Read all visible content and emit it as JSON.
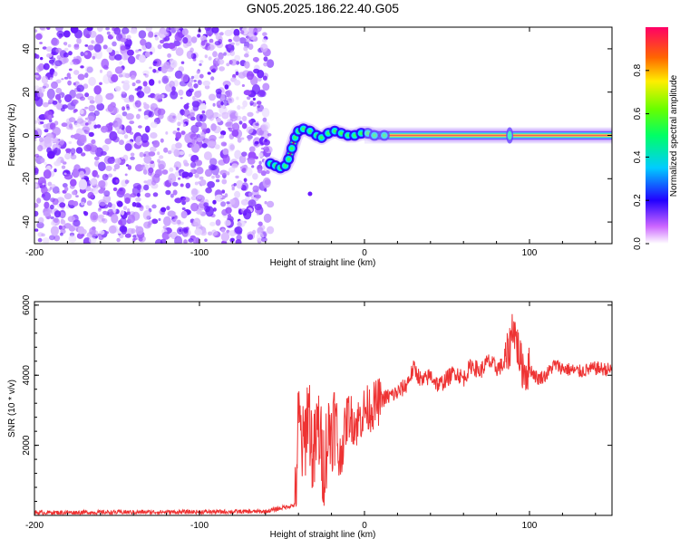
{
  "title": "GN05.2025.186.22.40.G05",
  "chart_data": [
    {
      "type": "heatmap",
      "xlabel": "Height of straight line (km)",
      "ylabel": "Frequency (Hz)",
      "xlim": [
        -200,
        150
      ],
      "ylim": [
        -50,
        50
      ],
      "xticks": [
        -200,
        -100,
        0,
        100
      ],
      "yticks": [
        -40,
        -20,
        0,
        20,
        40
      ],
      "colorbar": {
        "label": "Normalized spectral amplitude",
        "range": [
          0,
          1
        ],
        "ticks": [
          "0.0",
          "0.2",
          "0.4",
          "0.6",
          "0.8"
        ]
      },
      "noise_region_x": [
        -200,
        -57
      ],
      "ridge": [
        {
          "x": -57,
          "y": -13
        },
        {
          "x": -54,
          "y": -14
        },
        {
          "x": -51,
          "y": -15
        },
        {
          "x": -48,
          "y": -14
        },
        {
          "x": -46,
          "y": -11
        },
        {
          "x": -44,
          "y": -6
        },
        {
          "x": -42,
          "y": -1
        },
        {
          "x": -40,
          "y": 2
        },
        {
          "x": -37,
          "y": 3
        },
        {
          "x": -33,
          "y": 2
        },
        {
          "x": -29,
          "y": 0
        },
        {
          "x": -26,
          "y": -1
        },
        {
          "x": -22,
          "y": 1
        },
        {
          "x": -18,
          "y": 2
        },
        {
          "x": -14,
          "y": 1
        },
        {
          "x": -10,
          "y": 0
        },
        {
          "x": -6,
          "y": 0
        },
        {
          "x": -2,
          "y": 1
        },
        {
          "x": 2,
          "y": 1
        },
        {
          "x": 6,
          "y": 0
        },
        {
          "x": 12,
          "y": 0
        },
        {
          "x": 20,
          "y": 0
        },
        {
          "x": 60,
          "y": 0
        },
        {
          "x": 90,
          "y": 0
        },
        {
          "x": 150,
          "y": 0
        }
      ]
    },
    {
      "type": "line",
      "xlabel": "Height of straight line (km)",
      "ylabel": "SNR (10 * v/v)",
      "xlim": [
        -200,
        150
      ],
      "ylim": [
        0,
        6100
      ],
      "xticks": [
        -200,
        -100,
        0,
        100
      ],
      "yticks": [
        2000,
        4000,
        6000
      ],
      "color": "#ee3333",
      "series": [
        {
          "x": [
            -200,
            -150,
            -100,
            -60,
            -42,
            -40,
            -37,
            -34,
            -31,
            -28,
            -25,
            -22,
            -18,
            -15,
            -10,
            -5,
            0,
            5,
            10,
            15,
            20,
            25,
            30,
            35,
            40,
            45,
            50,
            55,
            60,
            65,
            70,
            75,
            80,
            85,
            88,
            90,
            92,
            95,
            98,
            100,
            105,
            110,
            115,
            120,
            130,
            140,
            150
          ],
          "y": [
            80,
            90,
            100,
            110,
            300,
            2700,
            1800,
            3200,
            1500,
            2600,
            1400,
            2300,
            2700,
            1600,
            2900,
            2600,
            3000,
            3100,
            3300,
            3400,
            3500,
            3700,
            4200,
            3800,
            4000,
            3700,
            3900,
            4100,
            3900,
            4300,
            4100,
            4400,
            4200,
            4300,
            4800,
            5500,
            5000,
            4300,
            4100,
            4200,
            3900,
            4000,
            4300,
            4200,
            4100,
            4200,
            4150
          ]
        }
      ]
    }
  ]
}
